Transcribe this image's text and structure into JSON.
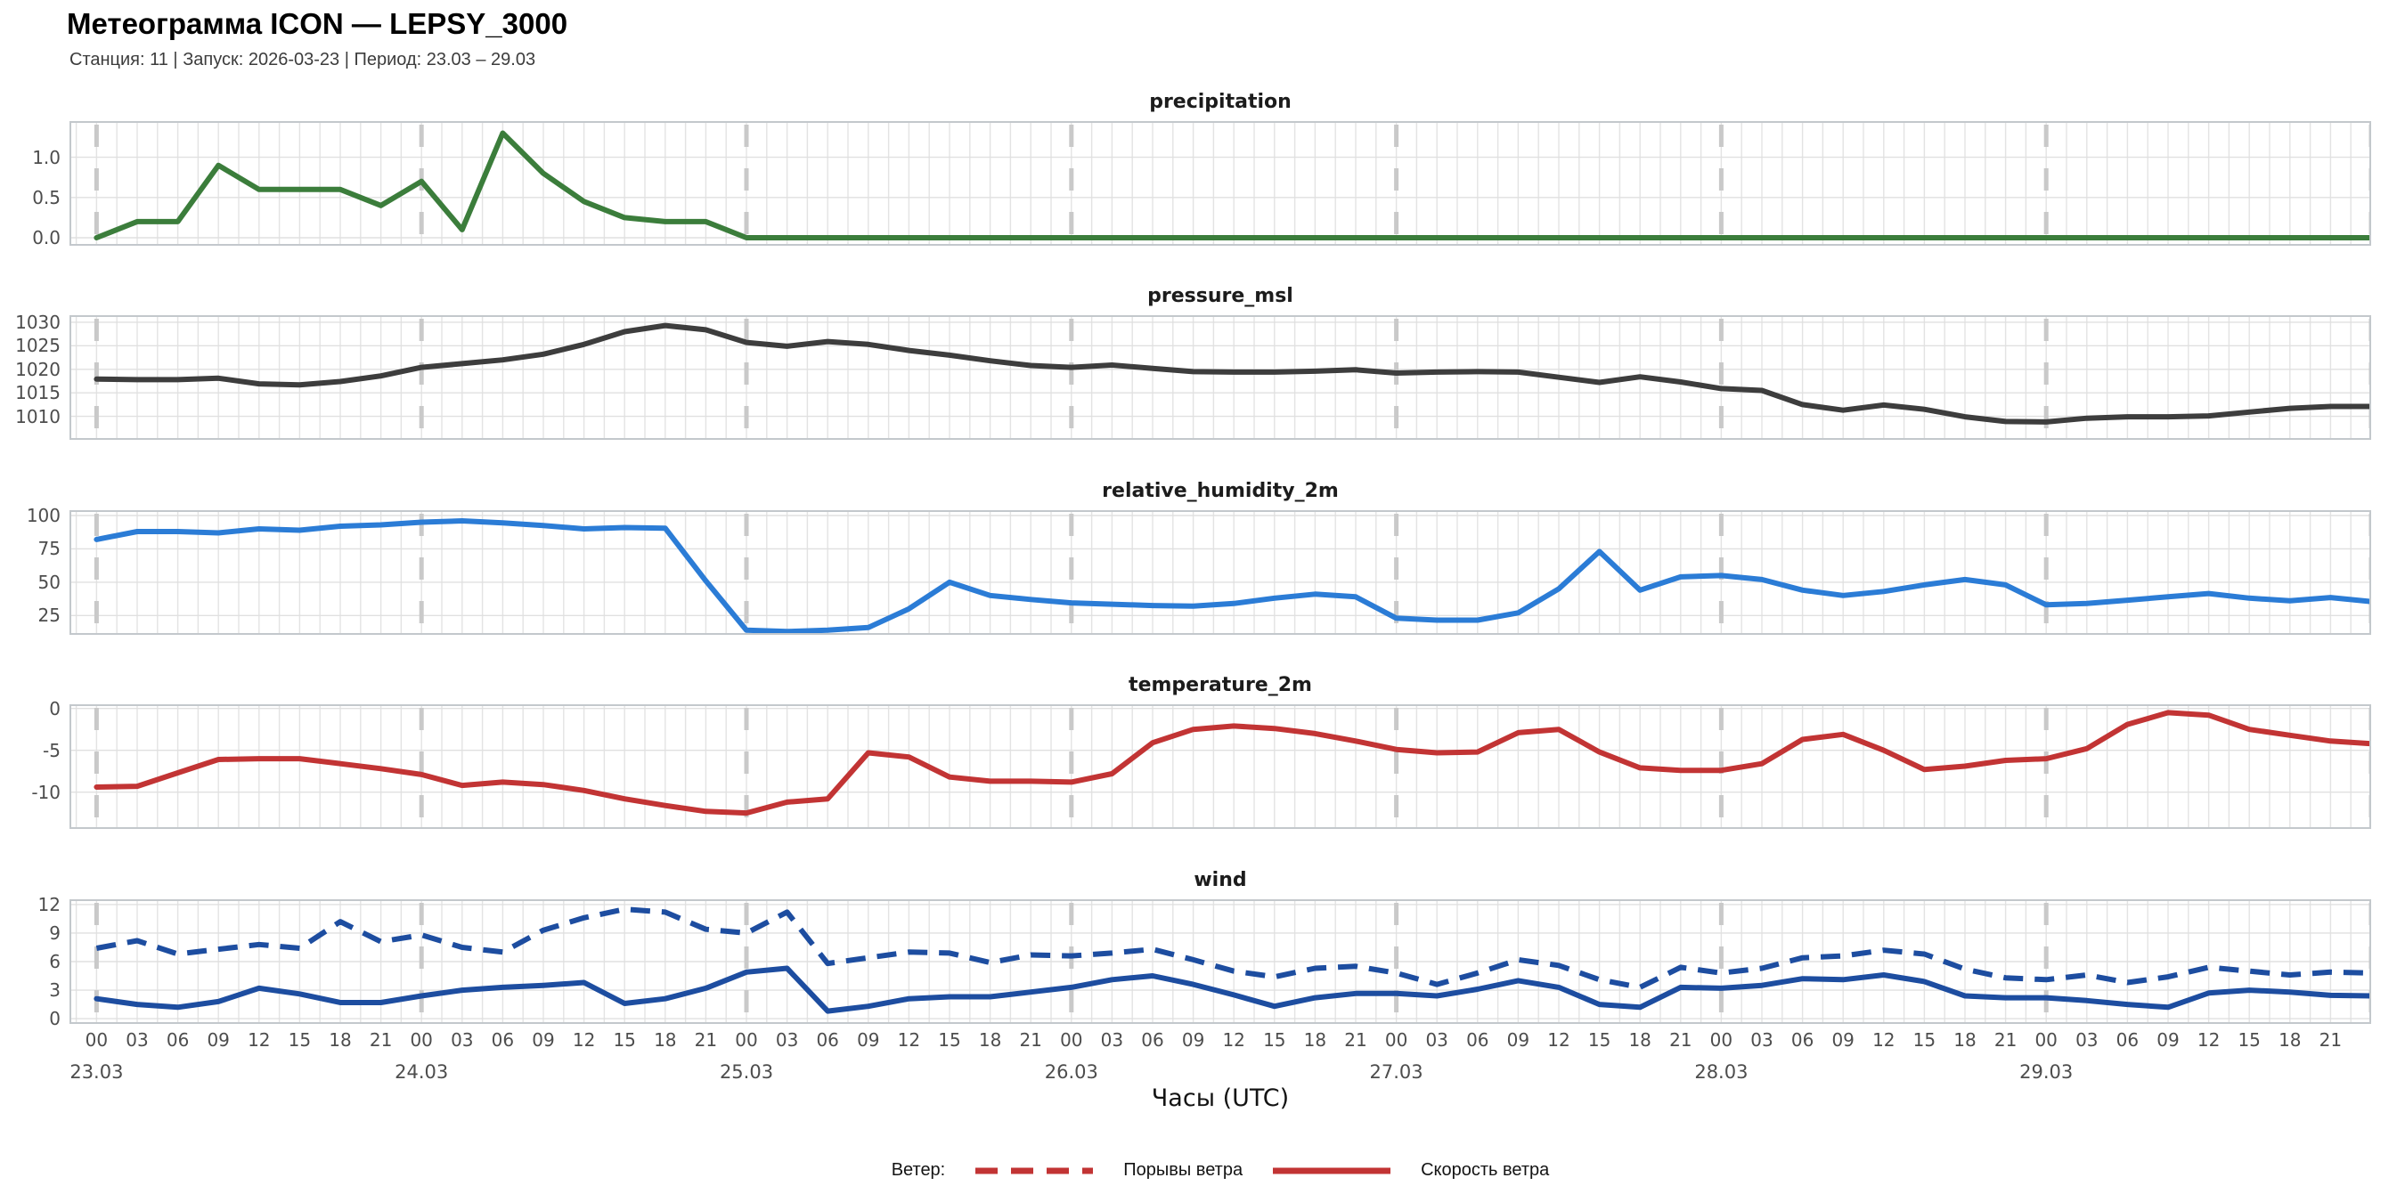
{
  "header": {
    "title": "Метеограмма ICON — LEPSY_3000",
    "subtitle": "Станция: 11  | Запуск: 2026-03-23  | Период: 23.03 – 29.03"
  },
  "xaxis": {
    "label": "Часы (UTC)",
    "hours_per_day": [
      "00",
      "03",
      "06",
      "09",
      "12",
      "15",
      "18",
      "21"
    ],
    "dates": [
      "23.03",
      "24.03",
      "25.03",
      "26.03",
      "27.03",
      "28.03",
      "29.03"
    ]
  },
  "legend": {
    "prefix": "Ветер:",
    "items": [
      {
        "label": "Порывы ветра",
        "style": "dashed"
      },
      {
        "label": "Скорость ветра",
        "style": "solid"
      }
    ],
    "color": "#c23434"
  },
  "chart_data": [
    {
      "type": "line",
      "title": "precipitation",
      "color": "#3b7d3b",
      "x_start": "23.03 00:00",
      "x_step_hours": 3,
      "ylim": [
        -0.1,
        1.45
      ],
      "yticks": [
        0,
        0.5,
        1
      ],
      "ytick_labels": [
        "0.0",
        "0.5",
        "1.0"
      ],
      "series": [
        {
          "name": "precipitation",
          "style": "solid",
          "values": [
            0,
            0.2,
            0.2,
            0.9,
            0.6,
            0.6,
            0.6,
            0.4,
            0.7,
            0.1,
            1.3,
            0.8,
            0.45,
            0.25,
            0.2,
            0.2,
            0,
            0,
            0,
            0,
            0,
            0,
            0,
            0,
            0,
            0,
            0,
            0,
            0,
            0,
            0,
            0,
            0,
            0,
            0,
            0,
            0,
            0,
            0,
            0,
            0,
            0,
            0,
            0,
            0,
            0,
            0,
            0,
            0,
            0,
            0,
            0,
            0,
            0,
            0,
            0,
            0
          ]
        }
      ]
    },
    {
      "type": "line",
      "title": "pressure_msl",
      "color": "#3d3d3d",
      "x_start": "23.03 00:00",
      "x_step_hours": 3,
      "ylim": [
        1005,
        1031.5
      ],
      "yticks": [
        1010,
        1015,
        1020,
        1025,
        1030
      ],
      "ytick_labels": [
        "1010",
        "1015",
        "1020",
        "1025",
        "1030"
      ],
      "series": [
        {
          "name": "pressure_msl",
          "style": "solid",
          "values": [
            1017.9,
            1017.8,
            1017.8,
            1018.1,
            1016.9,
            1016.7,
            1017.4,
            1018.6,
            1020.4,
            1021.2,
            1022.0,
            1023.2,
            1025.3,
            1028.0,
            1029.3,
            1028.4,
            1025.7,
            1024.9,
            1025.9,
            1025.3,
            1024.0,
            1023.0,
            1021.8,
            1020.8,
            1020.4,
            1020.9,
            1020.2,
            1019.5,
            1019.4,
            1019.4,
            1019.6,
            1019.9,
            1019.2,
            1019.4,
            1019.5,
            1019.4,
            1018.3,
            1017.2,
            1018.4,
            1017.3,
            1015.9,
            1015.5,
            1012.5,
            1011.3,
            1012.4,
            1011.5,
            1009.9,
            1008.9,
            1008.8,
            1009.6,
            1009.9,
            1009.9,
            1010.1,
            1010.9,
            1011.7,
            1012.1,
            1012.1
          ]
        }
      ]
    },
    {
      "type": "line",
      "title": "relative_humidity_2m",
      "color": "#2b7cd6",
      "x_start": "23.03 00:00",
      "x_step_hours": 3,
      "ylim": [
        10.5,
        104
      ],
      "yticks": [
        25,
        50,
        75,
        100
      ],
      "ytick_labels": [
        "25",
        "50",
        "75",
        "100"
      ],
      "series": [
        {
          "name": "relative_humidity_2m",
          "style": "solid",
          "values": [
            82,
            88,
            88,
            87,
            90,
            89,
            92,
            93,
            95,
            96,
            94.5,
            92.5,
            90,
            91,
            90.5,
            51,
            14,
            13,
            14,
            16,
            30,
            50,
            40,
            37,
            34.5,
            33.5,
            32.5,
            32,
            34,
            38,
            41,
            39,
            23,
            21.5,
            21.5,
            27,
            45,
            73,
            44,
            54,
            55,
            52,
            44,
            40,
            43,
            48,
            52,
            48,
            33,
            34,
            36.5,
            39,
            41.5,
            38,
            36,
            38.5,
            35.5
          ]
        }
      ]
    },
    {
      "type": "line",
      "title": "temperature_2m",
      "color": "#c23434",
      "x_start": "23.03 00:00",
      "x_step_hours": 3,
      "ylim": [
        -14.4,
        0.5
      ],
      "yticks": [
        -10,
        -5,
        0
      ],
      "ytick_labels": [
        "-10",
        "-5",
        "0"
      ],
      "series": [
        {
          "name": "temperature_2m",
          "style": "solid",
          "values": [
            -9.4,
            -9.3,
            -7.7,
            -6.1,
            -6.0,
            -6.0,
            -6.6,
            -7.2,
            -7.9,
            -9.2,
            -8.8,
            -9.1,
            -9.8,
            -10.8,
            -11.6,
            -12.3,
            -12.5,
            -11.2,
            -10.8,
            -5.3,
            -5.8,
            -8.2,
            -8.7,
            -8.7,
            -8.8,
            -7.8,
            -4.1,
            -2.5,
            -2.1,
            -2.4,
            -3.0,
            -3.9,
            -4.9,
            -5.3,
            -5.2,
            -2.9,
            -2.5,
            -5.2,
            -7.1,
            -7.4,
            -7.4,
            -6.6,
            -3.7,
            -3.1,
            -5.0,
            -7.3,
            -6.9,
            -6.2,
            -6.0,
            -4.8,
            -1.9,
            -0.5,
            -0.8,
            -2.5,
            -3.2,
            -3.9,
            -4.2
          ]
        }
      ]
    },
    {
      "type": "line",
      "title": "wind",
      "color": "#1d4da0",
      "x_start": "23.03 00:00",
      "x_step_hours": 3,
      "ylim": [
        -0.55,
        12.55
      ],
      "yticks": [
        0,
        3,
        6,
        9,
        12
      ],
      "ytick_labels": [
        "0",
        "3",
        "6",
        "9",
        "12"
      ],
      "series": [
        {
          "name": "wind-gusts",
          "style": "dashed",
          "values": [
            7.4,
            8.2,
            6.8,
            7.3,
            7.8,
            7.4,
            10.2,
            8.1,
            8.8,
            7.5,
            7.0,
            9.3,
            10.6,
            11.5,
            11.2,
            9.4,
            9.0,
            11.2,
            5.8,
            6.4,
            7.0,
            6.9,
            5.9,
            6.7,
            6.6,
            6.9,
            7.3,
            6.2,
            5.0,
            4.4,
            5.3,
            5.5,
            4.8,
            3.6,
            4.8,
            6.2,
            5.6,
            4.1,
            3.3,
            5.4,
            4.8,
            5.3,
            6.4,
            6.6,
            7.2,
            6.8,
            5.2,
            4.3,
            4.1,
            4.6,
            3.8,
            4.4,
            5.4,
            5.0,
            4.6,
            4.9,
            4.8
          ]
        },
        {
          "name": "wind-speed",
          "style": "solid",
          "values": [
            2.1,
            1.5,
            1.2,
            1.8,
            3.2,
            2.6,
            1.7,
            1.7,
            2.4,
            3.0,
            3.3,
            3.5,
            3.8,
            1.6,
            2.1,
            3.2,
            4.9,
            5.3,
            0.8,
            1.3,
            2.1,
            2.3,
            2.3,
            2.8,
            3.3,
            4.1,
            4.5,
            3.6,
            2.5,
            1.3,
            2.2,
            2.65,
            2.65,
            2.4,
            3.1,
            4.0,
            3.3,
            1.5,
            1.2,
            3.3,
            3.2,
            3.5,
            4.2,
            4.1,
            4.6,
            3.9,
            2.4,
            2.2,
            2.2,
            1.9,
            1.5,
            1.2,
            2.7,
            3.0,
            2.8,
            2.45,
            2.4
          ]
        }
      ]
    }
  ]
}
